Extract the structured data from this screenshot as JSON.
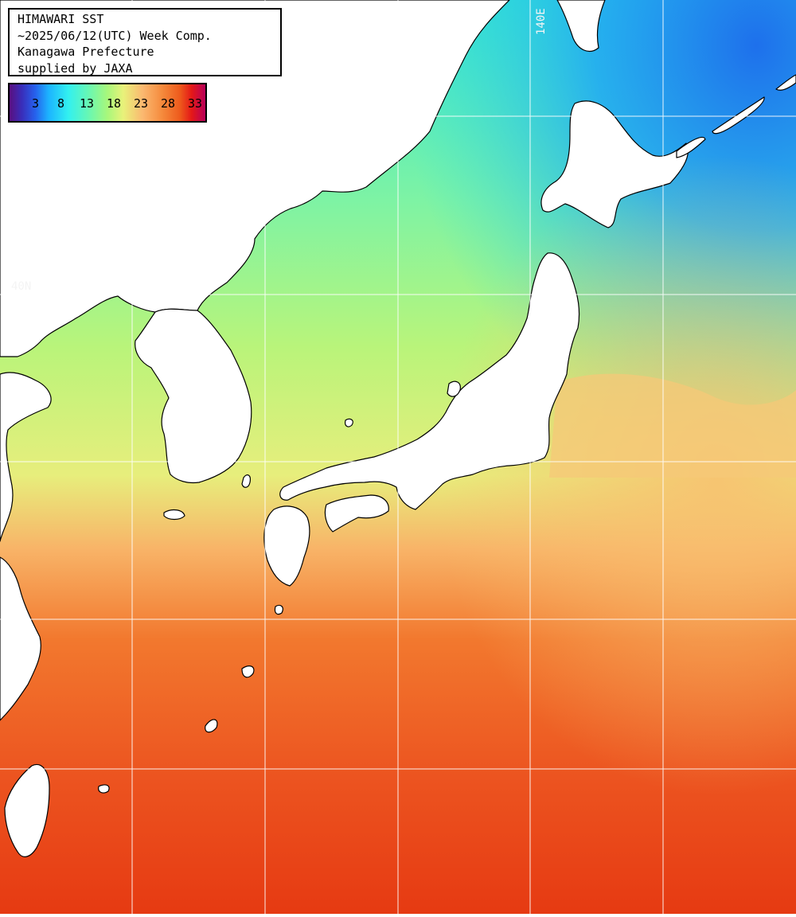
{
  "header": {
    "line1": "HIMAWARI SST",
    "line2": "~2025/06/12(UTC) Week Comp.",
    "line3": "Kanagawa Prefecture",
    "line4": "supplied by JAXA"
  },
  "legend": {
    "ticks": [
      "3",
      "8",
      "13",
      "18",
      "23",
      "28",
      "33"
    ]
  },
  "grid_labels": {
    "lon": "140E",
    "lat": "40N"
  },
  "colors": {
    "land": "#ffffff",
    "coastline": "#000000",
    "gridline": "#ffffff",
    "cold": "#1f8cf0",
    "cool": "#3ce8e0",
    "mild": "#9af38c",
    "warm": "#f6c872",
    "hot": "#f06a24",
    "hottest": "#e83a14"
  }
}
